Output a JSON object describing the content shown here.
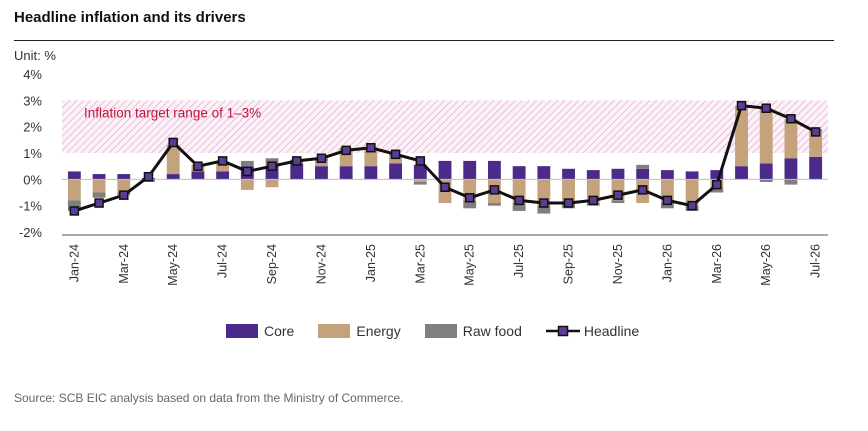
{
  "header": {
    "title": "Headline inflation and its drivers"
  },
  "unit_label": "Unit: %",
  "source": "Source: SCB EIC analysis based on data from the Ministry of Commerce.",
  "colors": {
    "core": "#4b2a8a",
    "energy": "#c4a27c",
    "raw_food": "#7f7f7f",
    "headline": "#111111",
    "headline_marker": "#5a3d96",
    "target_band": "#e6a6d2",
    "annotation": "#c0143c"
  },
  "chart_data": {
    "type": "bar",
    "stacked": true,
    "title": "Headline inflation and its drivers",
    "ylabel": "",
    "ylim": [
      -2,
      4
    ],
    "yticks": [
      -2,
      -1,
      0,
      1,
      2,
      3,
      4
    ],
    "ytick_labels": [
      "-2%",
      "-1%",
      "0%",
      "1%",
      "2%",
      "3%",
      "4%"
    ],
    "categories": [
      "Jan-24",
      "Feb-24",
      "Mar-24",
      "Apr-24",
      "May-24",
      "Jun-24",
      "Jul-24",
      "Aug-24",
      "Sep-24",
      "Oct-24",
      "Nov-24",
      "Dec-24",
      "Jan-25",
      "Feb-25",
      "Mar-25",
      "Apr-25",
      "May-25",
      "Jun-25",
      "Jul-25",
      "Aug-25",
      "Sep-25",
      "Oct-25",
      "Nov-25",
      "Dec-25",
      "Jan-26",
      "Feb-26",
      "Mar-26",
      "Apr-26",
      "May-26",
      "Jun-26",
      "Jul-26"
    ],
    "xtick_labels": [
      "Jan-24",
      "",
      "Mar-24",
      "",
      "May-24",
      "",
      "Jul-24",
      "",
      "Sep-24",
      "",
      "Nov-24",
      "",
      "Jan-25",
      "",
      "Mar-25",
      "",
      "May-25",
      "",
      "Jul-25",
      "",
      "Sep-25",
      "",
      "Nov-25",
      "",
      "Jan-26",
      "",
      "Mar-26",
      "",
      "May-26",
      "",
      "Jul-26"
    ],
    "series": [
      {
        "name": "Core",
        "kind": "bar",
        "values": [
          0.3,
          0.2,
          0.2,
          0.05,
          0.2,
          0.3,
          0.3,
          0.5,
          0.5,
          0.6,
          0.5,
          0.5,
          0.5,
          0.6,
          0.55,
          0.7,
          0.7,
          0.7,
          0.5,
          0.5,
          0.4,
          0.35,
          0.4,
          0.4,
          0.35,
          0.3,
          0.35,
          0.5,
          0.6,
          0.8,
          0.85
        ]
      },
      {
        "name": "Energy",
        "kind": "bar",
        "values": [
          -0.8,
          -0.5,
          -0.5,
          0.0,
          1.1,
          0.2,
          0.3,
          -0.4,
          -0.3,
          0.05,
          0.2,
          0.6,
          0.7,
          0.3,
          -0.1,
          -0.9,
          -0.8,
          -0.9,
          -0.9,
          -1.0,
          -0.9,
          -0.9,
          -0.8,
          -0.9,
          -0.9,
          -1.0,
          -0.3,
          2.3,
          2.1,
          1.5,
          1.0
        ]
      },
      {
        "name": "Raw food",
        "kind": "bar",
        "values": [
          -0.4,
          -0.2,
          -0.1,
          -0.1,
          0.0,
          0.05,
          0.05,
          0.2,
          0.3,
          0.1,
          0.1,
          0.1,
          0.0,
          0.05,
          -0.1,
          0.0,
          -0.3,
          -0.1,
          -0.3,
          -0.3,
          -0.2,
          -0.1,
          -0.1,
          0.15,
          -0.2,
          -0.2,
          -0.2,
          0.0,
          -0.1,
          -0.2,
          0.05
        ]
      },
      {
        "name": "Headline",
        "kind": "line",
        "values": [
          -1.2,
          -0.9,
          -0.6,
          0.1,
          1.4,
          0.5,
          0.7,
          0.3,
          0.5,
          0.7,
          0.8,
          1.1,
          1.2,
          0.95,
          0.7,
          -0.3,
          -0.7,
          -0.4,
          -0.8,
          -0.9,
          -0.9,
          -0.8,
          -0.6,
          -0.4,
          -0.8,
          -1.0,
          -0.2,
          2.8,
          2.7,
          2.3,
          1.8
        ]
      }
    ],
    "target_band": {
      "label": "Inflation target range of 1–3%",
      "from": 1,
      "to": 3
    },
    "legend_placement": "bottom"
  }
}
